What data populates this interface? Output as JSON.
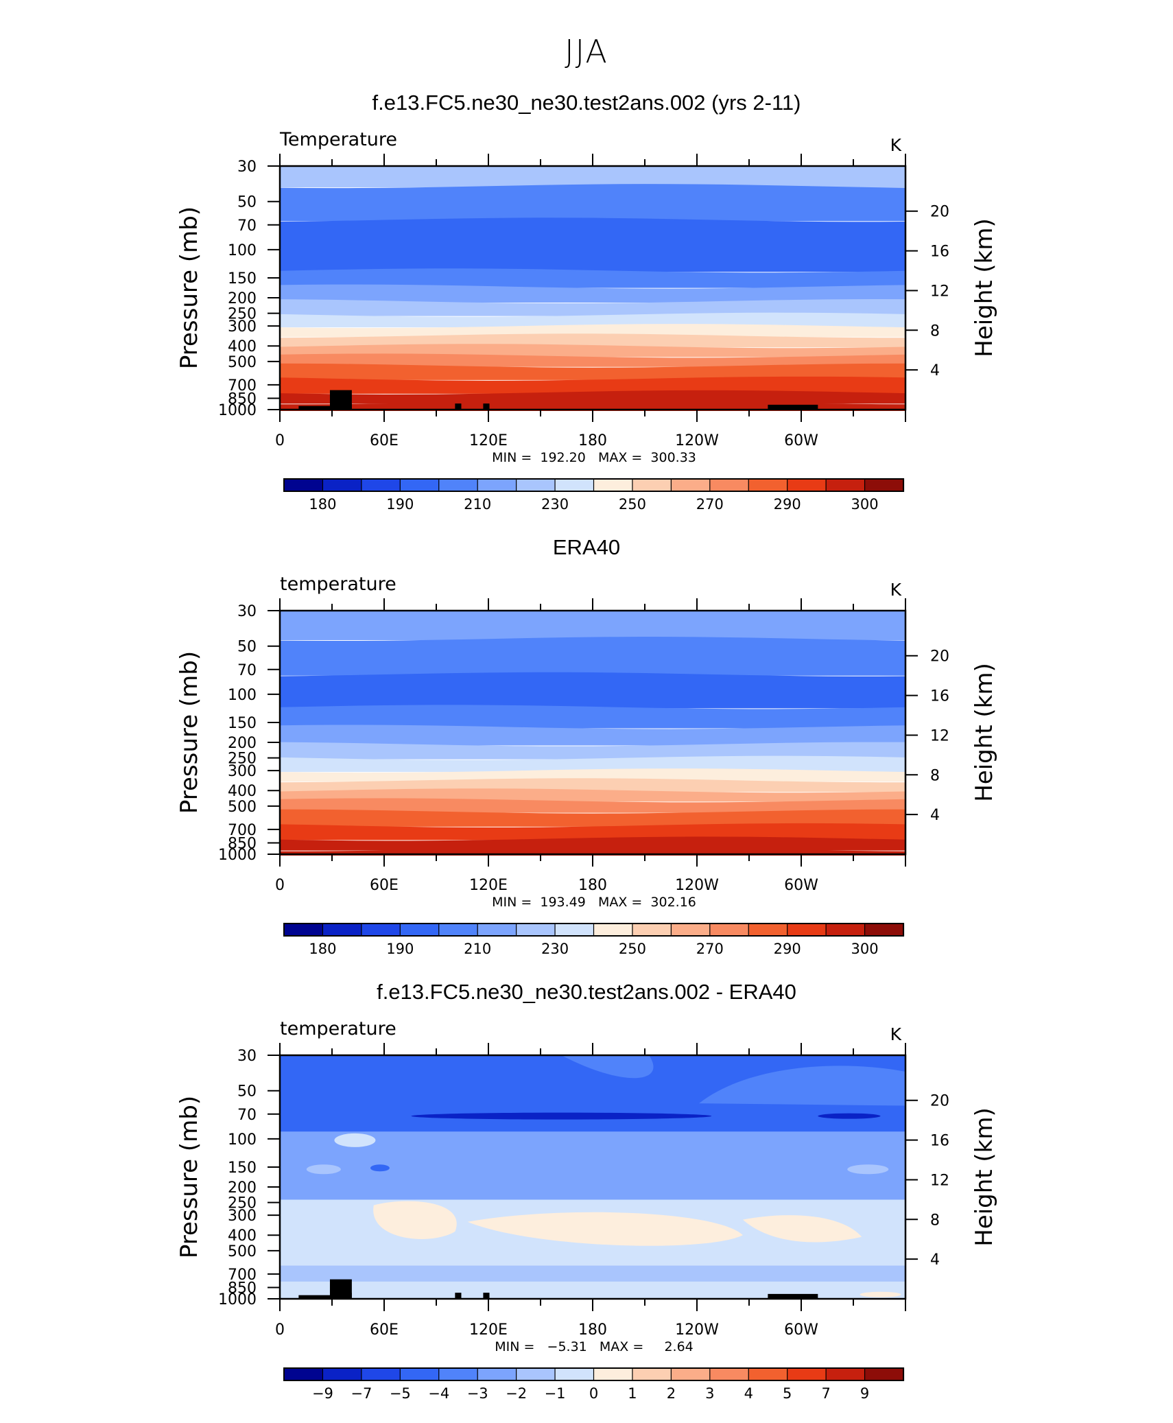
{
  "figure": {
    "title": "JJA"
  },
  "chart_data": [
    {
      "type": "heatmap",
      "title": "f.e13.FC5.ne30_ne30.test2ans.002 (yrs 2-11)",
      "variable_label": "Temperature",
      "units": "K",
      "ylabel": "Pressure (mb)",
      "ylabel_right": "Height (km)",
      "x_ticks": [
        "0",
        "60E",
        "120E",
        "180",
        "120W",
        "60W"
      ],
      "y_ticks": [
        "30",
        "50",
        "70",
        "100",
        "150",
        "200",
        "250",
        "300",
        "400",
        "500",
        "700",
        "850",
        "1000"
      ],
      "y_right_ticks": [
        "20",
        "16",
        "12",
        "8",
        "4"
      ],
      "stats_text": "MIN =  192.20   MAX =  300.33",
      "min": 192.2,
      "max": 300.33,
      "colorbar_labels": [
        "180",
        "190",
        "210",
        "230",
        "250",
        "270",
        "290",
        "300"
      ],
      "colorbar_colors": [
        "#000490",
        "#0a22c6",
        "#1f47e8",
        "#3367f5",
        "#5083fa",
        "#7ca4fd",
        "#a9c5fd",
        "#d1e3fc",
        "#fdeedd",
        "#fccfb2",
        "#fbad89",
        "#f88a61",
        "#f2612f",
        "#e83b15",
        "#c6200e",
        "#8d0d08"
      ]
    },
    {
      "type": "heatmap",
      "title": "ERA40",
      "variable_label": "temperature",
      "units": "K",
      "ylabel": "Pressure (mb)",
      "ylabel_right": "Height (km)",
      "x_ticks": [
        "0",
        "60E",
        "120E",
        "180",
        "120W",
        "60W"
      ],
      "y_ticks": [
        "30",
        "50",
        "70",
        "100",
        "150",
        "200",
        "250",
        "300",
        "400",
        "500",
        "700",
        "850",
        "1000"
      ],
      "y_right_ticks": [
        "20",
        "16",
        "12",
        "8",
        "4"
      ],
      "stats_text": "MIN =  193.49   MAX =  302.16",
      "min": 193.49,
      "max": 302.16,
      "colorbar_labels": [
        "180",
        "190",
        "210",
        "230",
        "250",
        "270",
        "290",
        "300"
      ],
      "colorbar_colors": [
        "#000490",
        "#0a22c6",
        "#1f47e8",
        "#3367f5",
        "#5083fa",
        "#7ca4fd",
        "#a9c5fd",
        "#d1e3fc",
        "#fdeedd",
        "#fccfb2",
        "#fbad89",
        "#f88a61",
        "#f2612f",
        "#e83b15",
        "#c6200e",
        "#8d0d08"
      ]
    },
    {
      "type": "heatmap",
      "title": "f.e13.FC5.ne30_ne30.test2ans.002 - ERA40",
      "variable_label": "temperature",
      "units": "K",
      "ylabel": "Pressure (mb)",
      "ylabel_right": "Height (km)",
      "x_ticks": [
        "0",
        "60E",
        "120E",
        "180",
        "120W",
        "60W"
      ],
      "y_ticks": [
        "30",
        "50",
        "70",
        "100",
        "150",
        "200",
        "250",
        "300",
        "400",
        "500",
        "700",
        "850",
        "1000"
      ],
      "y_right_ticks": [
        "20",
        "16",
        "12",
        "8",
        "4"
      ],
      "stats_text": "MIN =   −5.31   MAX =     2.64",
      "min": -5.31,
      "max": 2.64,
      "colorbar_labels": [
        "−9",
        "−7",
        "−5",
        "−4",
        "−3",
        "−2",
        "−1",
        "0",
        "1",
        "2",
        "3",
        "4",
        "5",
        "7",
        "9"
      ],
      "colorbar_colors": [
        "#000490",
        "#0a22c6",
        "#1f47e8",
        "#3367f5",
        "#5083fa",
        "#7ca4fd",
        "#a9c5fd",
        "#d1e3fc",
        "#fdeedd",
        "#fccfb2",
        "#fbad89",
        "#f88a61",
        "#f2612f",
        "#e83b15",
        "#c6200e",
        "#8d0d08"
      ]
    }
  ]
}
